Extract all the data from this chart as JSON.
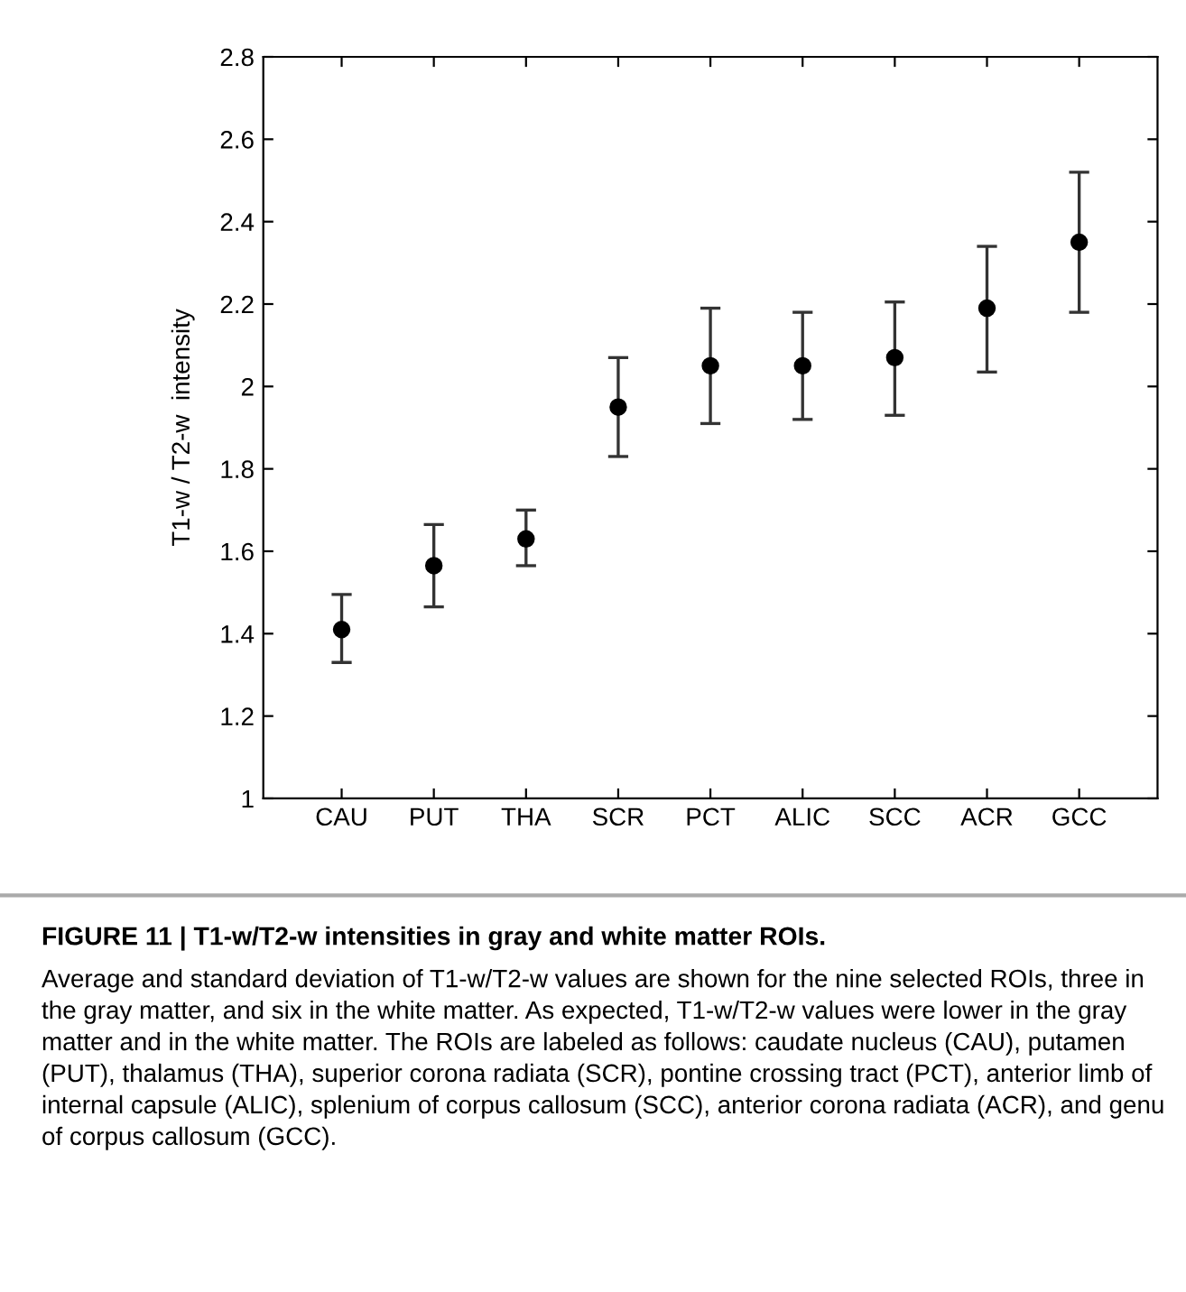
{
  "chart_data": {
    "type": "scatter",
    "ylabel": "T1-w / T2-w  intensity",
    "categories": [
      "CAU",
      "PUT",
      "THA",
      "SCR",
      "PCT",
      "ALIC",
      "SCC",
      "ACR",
      "GCC"
    ],
    "values": [
      1.41,
      1.565,
      1.63,
      1.95,
      2.05,
      2.05,
      2.07,
      2.19,
      2.35
    ],
    "errors": [
      [
        1.33,
        1.495
      ],
      [
        1.465,
        1.665
      ],
      [
        1.565,
        1.7
      ],
      [
        1.83,
        2.07
      ],
      [
        1.91,
        2.19
      ],
      [
        1.92,
        2.18
      ],
      [
        1.93,
        2.205
      ],
      [
        2.035,
        2.34
      ],
      [
        2.18,
        2.52
      ]
    ],
    "color": "#000000",
    "marker": "circle",
    "grid": false,
    "legend": false,
    "ylim": [
      1,
      2.8
    ],
    "yticks": [
      1,
      1.2,
      1.4,
      1.6,
      1.8,
      2,
      2.2,
      2.4,
      2.6,
      2.8
    ],
    "annotations": [
      "FIGURE 11 | T1-w/T2-w intensities in gray and white matter ROIs.",
      "Average and standard deviation of T1-w/T2-w values are shown for the nine selected ROIs, three in the gray matter, and six in the white matter. As expected, T1-w/T2-w values were lower in the gray matter and in the white matter. The ROIs are labeled as follows: caudate nucleus (CAU), putamen (PUT), thalamus (THA), superior corona radiata (SCR), pontine crossing tract (PCT), anterior limb of internal capsule (ALIC), splenium of corpus callosum (SCC), anterior corona radiata (ACR), and genu of corpus callosum (GCC)."
    ]
  }
}
